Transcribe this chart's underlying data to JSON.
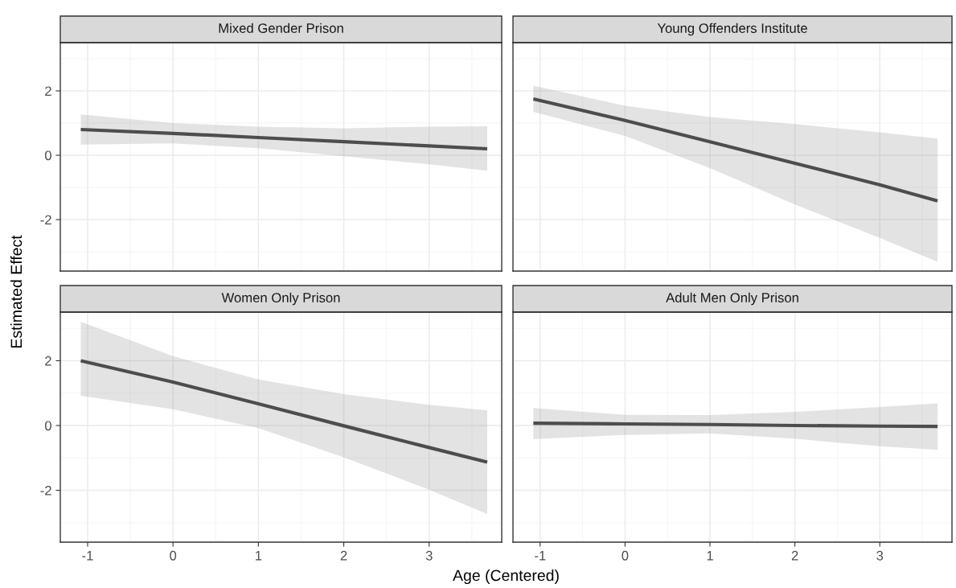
{
  "chart_data": [
    {
      "type": "line",
      "title": "Mixed Gender Prison",
      "ylabel": "Estimated Effect",
      "x": [
        -1.08,
        0,
        1,
        2,
        3,
        3.68
      ],
      "xlim": [
        -1.32,
        3.85
      ],
      "ylim": [
        -3.6,
        3.5
      ],
      "xticks": [
        -1,
        0,
        1,
        2,
        3
      ],
      "yticks": [
        -2,
        0,
        2
      ],
      "grid": true,
      "tick_labels": "y",
      "series": [
        {
          "color": "#4d4d4d",
          "values": [
            0.8,
            0.68,
            0.55,
            0.42,
            0.29,
            0.2
          ],
          "lower": [
            0.33,
            0.37,
            0.22,
            -0.03,
            -0.28,
            -0.48
          ],
          "upper": [
            1.27,
            1.0,
            0.89,
            0.84,
            0.89,
            0.9
          ]
        }
      ]
    },
    {
      "type": "line",
      "title": "Young Offenders Institute",
      "x": [
        -1.08,
        0,
        1,
        2,
        3,
        3.68
      ],
      "xlim": [
        -1.32,
        3.85
      ],
      "ylim": [
        -3.6,
        3.5
      ],
      "xticks": [
        -1,
        0,
        1,
        2,
        3
      ],
      "yticks": [
        -2,
        0,
        2
      ],
      "grid": true,
      "tick_labels": false,
      "series": [
        {
          "color": "#4d4d4d",
          "values": [
            1.75,
            1.08,
            0.42,
            -0.25,
            -0.92,
            -1.42
          ],
          "lower": [
            1.35,
            0.6,
            -0.4,
            -1.53,
            -2.57,
            -3.31
          ],
          "upper": [
            2.16,
            1.54,
            1.19,
            0.97,
            0.71,
            0.52
          ]
        }
      ]
    },
    {
      "type": "line",
      "title": "Women Only Prison",
      "xlabel": "Age (Centered)",
      "x": [
        -1.08,
        0,
        1,
        2,
        3,
        3.68
      ],
      "xlim": [
        -1.32,
        3.85
      ],
      "ylim": [
        -3.6,
        3.5
      ],
      "xticks": [
        -1,
        0,
        1,
        2,
        3
      ],
      "yticks": [
        -2,
        0,
        2
      ],
      "grid": true,
      "series": [
        {
          "color": "#4d4d4d",
          "values": [
            2.0,
            1.34,
            0.67,
            -0.01,
            -0.68,
            -1.13
          ],
          "lower": [
            0.92,
            0.5,
            -0.08,
            -0.98,
            -1.98,
            -2.73
          ],
          "upper": [
            3.2,
            2.14,
            1.42,
            0.97,
            0.64,
            0.47
          ]
        }
      ]
    },
    {
      "type": "line",
      "title": "Adult Men Only Prison",
      "x": [
        -1.08,
        0,
        1,
        2,
        3,
        3.68
      ],
      "xlim": [
        -1.32,
        3.85
      ],
      "ylim": [
        -3.6,
        3.5
      ],
      "xticks": [
        -1,
        0,
        1,
        2,
        3
      ],
      "yticks": [
        -2,
        0,
        2
      ],
      "grid": true,
      "tick_labels": "x",
      "series": [
        {
          "color": "#4d4d4d",
          "values": [
            0.07,
            0.05,
            0.03,
            0.0,
            -0.02,
            -0.03
          ],
          "lower": [
            -0.42,
            -0.29,
            -0.24,
            -0.41,
            -0.64,
            -0.75
          ],
          "upper": [
            0.54,
            0.33,
            0.32,
            0.42,
            0.57,
            0.68
          ]
        }
      ]
    }
  ]
}
